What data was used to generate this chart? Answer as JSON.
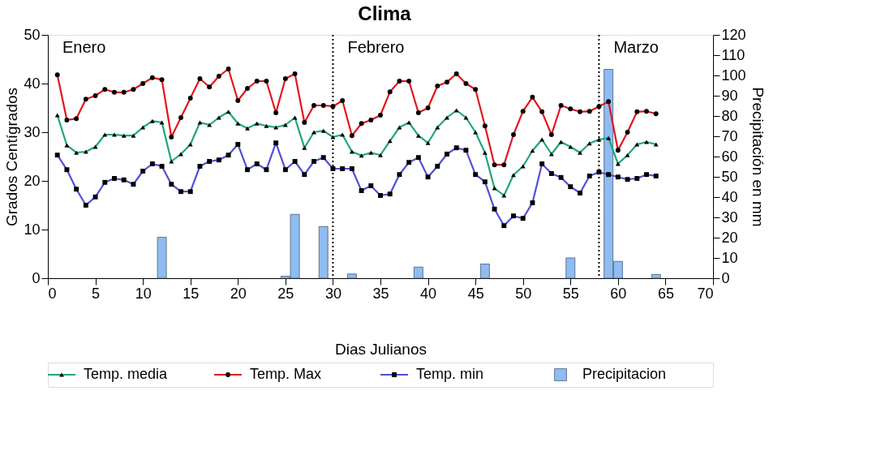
{
  "chart_data": {
    "type": "line",
    "title": "Clima",
    "xlabel": "Dias Julianos",
    "ylabel": "Grados Centígrados",
    "y2label": "Precipitación en mm",
    "x": [
      1,
      2,
      3,
      4,
      5,
      6,
      7,
      8,
      9,
      10,
      11,
      12,
      13,
      14,
      15,
      16,
      17,
      18,
      19,
      20,
      21,
      22,
      23,
      24,
      25,
      26,
      27,
      28,
      29,
      30,
      31,
      32,
      33,
      34,
      35,
      36,
      37,
      38,
      39,
      40,
      41,
      42,
      43,
      44,
      45,
      46,
      47,
      48,
      49,
      50,
      51,
      52,
      53,
      54,
      55,
      56,
      57,
      58,
      59,
      60,
      61,
      62,
      63,
      64
    ],
    "xlim": [
      0,
      70
    ],
    "xticks": [
      0,
      5,
      10,
      15,
      20,
      25,
      30,
      35,
      40,
      45,
      50,
      55,
      60,
      65,
      70
    ],
    "ylim": [
      0,
      50
    ],
    "yticks": [
      0,
      10,
      20,
      30,
      40,
      50
    ],
    "y2lim": [
      0,
      120
    ],
    "y2ticks": [
      0,
      10,
      20,
      30,
      40,
      50,
      60,
      70,
      80,
      90,
      100,
      110,
      120
    ],
    "grid": false,
    "legend": "bottom",
    "line_style": "solid",
    "series": [
      {
        "name": "Temp. media",
        "color": "#1fa67a",
        "marker": "triangle",
        "values": [
          33.5,
          27.3,
          25.8,
          26,
          27,
          29.5,
          29.5,
          29.3,
          29.3,
          31,
          32.3,
          32,
          24,
          25.5,
          27.5,
          32,
          31.5,
          33,
          34.2,
          31.8,
          30.8,
          31.8,
          31.3,
          31,
          31.5,
          33,
          26.8,
          30,
          30.3,
          29,
          29.5,
          26,
          25.2,
          25.8,
          25.3,
          28.2,
          31,
          32,
          29.3,
          27.8,
          31,
          33,
          34.5,
          33,
          30,
          25.8,
          18.5,
          17,
          21.2,
          23,
          26.2,
          28.5,
          25.5,
          28,
          27,
          25.8,
          27.7,
          28.5,
          28.8,
          23.5,
          25.3,
          27.5,
          28,
          27.5
        ]
      },
      {
        "name": "Temp. Max",
        "color": "#e3161c",
        "marker": "circle",
        "values": [
          41.8,
          32.5,
          32.8,
          36.8,
          37.5,
          38.8,
          38.2,
          38.2,
          38.8,
          40,
          41.2,
          40.8,
          29,
          33,
          37,
          41,
          39.3,
          41.5,
          43,
          36.5,
          39,
          40.5,
          40.5,
          34,
          41,
          42,
          32,
          35.5,
          35.5,
          35.3,
          36.5,
          29.3,
          31.8,
          32.5,
          33.5,
          38.3,
          40.5,
          40.5,
          34,
          35,
          39.5,
          40.3,
          42,
          40,
          38.8,
          31.3,
          23.3,
          23.3,
          29.5,
          34.3,
          37.2,
          34.2,
          29.5,
          35.5,
          34.8,
          34.2,
          34.3,
          35.3,
          36.3,
          26.3,
          30,
          34.2,
          34.3,
          33.8
        ]
      },
      {
        "name": "Temp. min",
        "color": "#5050d8",
        "marker": "square",
        "values": [
          25.3,
          22.3,
          18.3,
          15,
          16.7,
          19.7,
          20.5,
          20.2,
          19.3,
          22,
          23.5,
          23,
          19.3,
          17.8,
          17.8,
          23,
          24,
          24.3,
          25.3,
          27.5,
          22.3,
          23.5,
          22.3,
          27.8,
          22.3,
          24,
          21.3,
          24,
          24.8,
          22.5,
          22.5,
          22.5,
          18,
          19,
          17,
          17.3,
          21.3,
          23.8,
          24.8,
          20.8,
          23,
          25.5,
          26.8,
          26.3,
          21.3,
          19.8,
          14.2,
          10.8,
          12.8,
          12.3,
          15.5,
          23.5,
          21.5,
          20.7,
          18.8,
          17.5,
          21,
          21.8,
          21.3,
          20.8,
          20.3,
          20.5,
          21.3,
          21
        ]
      },
      {
        "name": "Precipitacion",
        "type": "bar",
        "axis": "y2",
        "color": "#8fbcf2",
        "x": [
          12,
          25,
          26,
          29,
          32,
          39,
          46,
          55,
          59,
          60,
          64
        ],
        "values": [
          20.2,
          1,
          31.5,
          25.5,
          2.1,
          5.5,
          7,
          10,
          103,
          8.3,
          1.8
        ]
      }
    ],
    "ref_lines": [
      {
        "axis": "x",
        "value": 30,
        "color": "#000000",
        "line_style": "dotted"
      },
      {
        "axis": "x",
        "value": 58,
        "color": "#000000",
        "line_style": "dotted"
      }
    ],
    "annotations": [
      "Enero",
      "Febrero",
      "Marzo"
    ]
  }
}
